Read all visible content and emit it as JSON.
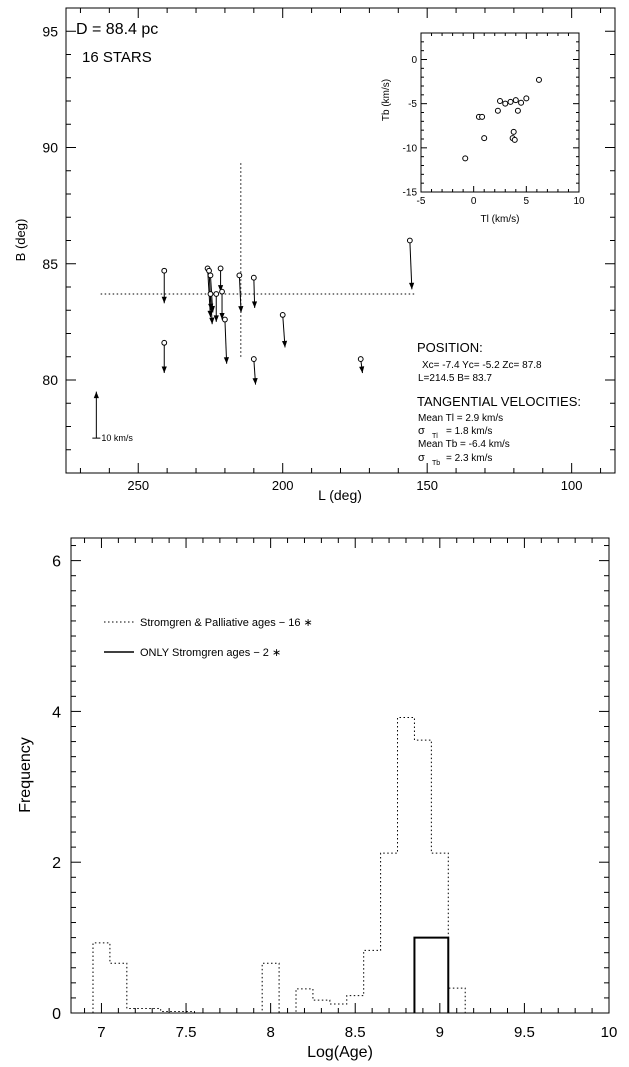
{
  "chart_data": [
    {
      "type": "scatter",
      "xlabel": "L (deg)",
      "ylabel": "B (deg)",
      "xlim": [
        275,
        85
      ],
      "ylim": [
        76,
        96
      ],
      "x_ticks": [
        250,
        200,
        150,
        100
      ],
      "y_ticks": [
        80,
        85,
        90,
        95
      ],
      "annotations": {
        "distance": "D =   88.4 pc",
        "nstars": "16 STARS",
        "position_title": "POSITION:",
        "position_line1": "Xc=  -7.4 Yc=   -5.2 Zc=   87.8",
        "position_line2": "L=214.5 B= 83.7",
        "vel_title": "TANGENTIAL VELOCITIES:",
        "vel_line1": "Mean Tl =  2.9 km/s",
        "vel_line2_sym": "σ",
        "vel_line2_sub": "Tl",
        "vel_line2_val": "=  1.8 km/s",
        "vel_line3": "Mean Tb = -6.4 km/s",
        "vel_line4_sym": "σ",
        "vel_line4_sub": "Tb",
        "vel_line4_val": "=   2.3 km/s",
        "scale_label": "10 km/s"
      },
      "center": {
        "L": 214.5,
        "B": 83.7
      },
      "crosshair": {
        "L_range": [
          263,
          154
        ],
        "B_range": [
          81.0,
          89.4
        ]
      },
      "scale_vector": {
        "L": 264.5,
        "B": 77.5,
        "dB": 2.0,
        "km_s": 10
      },
      "stars": [
        {
          "L": 241,
          "B": 84.7,
          "dL": 0.0,
          "dB": -1.4
        },
        {
          "L": 241,
          "B": 81.6,
          "dL": 0.0,
          "dB": -1.3
        },
        {
          "L": 226,
          "B": 84.8,
          "dL": 1.0,
          "dB": -2.1
        },
        {
          "L": 225.5,
          "B": 84.7,
          "dL": 0.7,
          "dB": -1.7
        },
        {
          "L": 225,
          "B": 84.5,
          "dL": 0.8,
          "dB": -1.6
        },
        {
          "L": 225,
          "B": 83.7,
          "dL": 0.6,
          "dB": -1.3
        },
        {
          "L": 223,
          "B": 83.7,
          "dL": 0.0,
          "dB": -1.2
        },
        {
          "L": 221.5,
          "B": 84.8,
          "dL": 0.0,
          "dB": -1.0
        },
        {
          "L": 221,
          "B": 83.8,
          "dL": 0.0,
          "dB": -1.2
        },
        {
          "L": 220,
          "B": 82.6,
          "dL": 0.6,
          "dB": -1.9
        },
        {
          "L": 215,
          "B": 84.5,
          "dL": 0.6,
          "dB": -1.6
        },
        {
          "L": 210,
          "B": 84.4,
          "dL": 0.3,
          "dB": -1.3
        },
        {
          "L": 210,
          "B": 80.9,
          "dL": 0.6,
          "dB": -1.1
        },
        {
          "L": 200,
          "B": 82.8,
          "dL": 0.8,
          "dB": -1.4
        },
        {
          "L": 173,
          "B": 80.9,
          "dL": 0.6,
          "dB": -0.6
        },
        {
          "L": 156,
          "B": 86.0,
          "dL": 0.7,
          "dB": -2.1
        }
      ]
    },
    {
      "type": "scatter",
      "xlabel": "Tl (km/s)",
      "ylabel": "Tb (km/s)",
      "xlim": [
        -5,
        10
      ],
      "ylim": [
        -15,
        3
      ],
      "x_ticks": [
        -5,
        0,
        5,
        10
      ],
      "y_ticks": [
        -15,
        -10,
        -5,
        0
      ],
      "points": [
        {
          "x": -0.8,
          "y": -11.2
        },
        {
          "x": 0.5,
          "y": -6.5
        },
        {
          "x": 0.8,
          "y": -6.5
        },
        {
          "x": 1.0,
          "y": -8.9
        },
        {
          "x": 2.3,
          "y": -5.8
        },
        {
          "x": 2.5,
          "y": -4.7
        },
        {
          "x": 3.0,
          "y": -5.0
        },
        {
          "x": 3.5,
          "y": -4.8
        },
        {
          "x": 3.7,
          "y": -8.9
        },
        {
          "x": 3.9,
          "y": -9.1
        },
        {
          "x": 3.8,
          "y": -8.2
        },
        {
          "x": 4.0,
          "y": -4.6
        },
        {
          "x": 4.2,
          "y": -5.8
        },
        {
          "x": 4.5,
          "y": -4.9
        },
        {
          "x": 5.0,
          "y": -4.4
        },
        {
          "x": 6.2,
          "y": -2.3
        }
      ]
    },
    {
      "type": "area",
      "xlabel": "Log(Age)",
      "ylabel": "Frequency",
      "xlim": [
        6.82,
        10.0
      ],
      "ylim": [
        0,
        6.3
      ],
      "x_ticks": [
        7,
        7.5,
        8,
        8.5,
        9,
        9.5,
        10
      ],
      "x_tick_labels": [
        "7",
        "7.5",
        "8",
        "8.5",
        "9",
        "9.5",
        "10"
      ],
      "y_ticks": [
        0,
        2,
        4,
        6
      ],
      "legend": [
        {
          "name": "Stromgren & Palliative ages  − 16 ∗",
          "style": "dotted"
        },
        {
          "name": "ONLY Stromgren ages  −   2 ∗",
          "style": "solid"
        }
      ],
      "series": [
        {
          "name": "Stromgren & Palliative ages  − 16 ∗",
          "style": "dotted",
          "edges": [
            6.95,
            7.05,
            7.15,
            7.25,
            7.35,
            7.45,
            7.55,
            7.65,
            7.75,
            7.85,
            7.95,
            8.05,
            8.15,
            8.25,
            8.35,
            8.45,
            8.55,
            8.65,
            8.75,
            8.85,
            8.95,
            9.05,
            9.15
          ],
          "values": [
            0.93,
            0.66,
            0.06,
            0.06,
            0.02,
            0.02,
            0,
            0,
            0,
            0,
            0.66,
            0,
            0.32,
            0.17,
            0.12,
            0.23,
            0.83,
            2.12,
            3.92,
            3.62,
            2.12,
            0.33
          ]
        },
        {
          "name": "ONLY Stromgren ages  −   2 ∗",
          "style": "solid",
          "edges": [
            8.85,
            8.95,
            9.05
          ],
          "values": [
            1.0,
            1.0
          ]
        }
      ]
    }
  ]
}
